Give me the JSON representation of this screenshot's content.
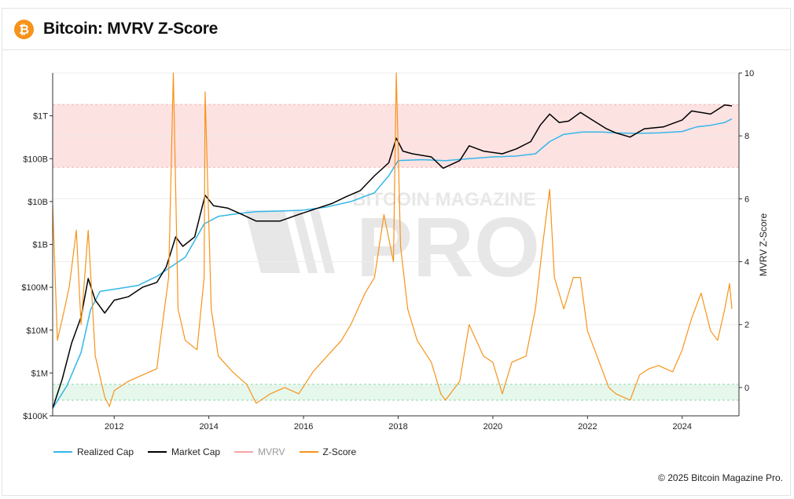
{
  "header": {
    "title": "Bitcoin: MVRV Z-Score",
    "logo_glyph": "₿"
  },
  "footer": {
    "copyright": "© 2025 Bitcoin Magazine Pro."
  },
  "watermark": {
    "top": "BITCOIN MAGAZINE",
    "big": "PRO"
  },
  "colors": {
    "realized_cap": "#35b7e8",
    "market_cap": "#000000",
    "mvrv": "#f4a6a6",
    "z_score": "#f7931a",
    "red_band": "#fde2e2",
    "green_band": "#e6f8ec"
  },
  "chart_data": {
    "type": "line",
    "title": "Bitcoin: MVRV Z-Score",
    "x_range": [
      2010.7,
      2025.2
    ],
    "x_ticks": [
      "2012",
      "2014",
      "2016",
      "2018",
      "2020",
      "2022",
      "2024"
    ],
    "x_tick_values": [
      2012,
      2014,
      2016,
      2018,
      2020,
      2022,
      2024
    ],
    "y_left": {
      "scale": "log",
      "range": [
        100000,
        10000000000000
      ],
      "ticks": [
        "$100K",
        "$1M",
        "$10M",
        "$100M",
        "$1B",
        "$10B",
        "$100B",
        "$1T"
      ],
      "tick_values": [
        100000,
        1000000,
        10000000,
        100000000,
        1000000000,
        10000000000,
        100000000000,
        1000000000000
      ]
    },
    "y_right": {
      "label": "MVRV Z-Score",
      "range": [
        -0.9,
        10
      ],
      "ticks": [
        "0",
        "2",
        "4",
        "6",
        "8",
        "10"
      ],
      "tick_values": [
        0,
        2,
        4,
        6,
        8,
        10
      ]
    },
    "bands": [
      {
        "name": "red",
        "z_from": 7,
        "z_to": 9
      },
      {
        "name": "green",
        "z_from": -0.4,
        "z_to": 0.1
      }
    ],
    "series": [
      {
        "name": "Realized Cap",
        "axis": "left",
        "x": [
          2010.7,
          2011.0,
          2011.3,
          2011.5,
          2011.7,
          2012.0,
          2012.5,
          2012.9,
          2013.2,
          2013.5,
          2013.9,
          2014.2,
          2014.6,
          2015.0,
          2015.5,
          2016.0,
          2016.5,
          2017.0,
          2017.5,
          2017.8,
          2018.0,
          2018.5,
          2019.0,
          2019.5,
          2020.0,
          2020.5,
          2020.9,
          2021.2,
          2021.5,
          2021.9,
          2022.3,
          2022.6,
          2023.0,
          2023.5,
          2024.0,
          2024.3,
          2024.6,
          2024.9,
          2025.05
        ],
        "y": [
          150000,
          500000,
          3000000,
          30000000,
          80000000,
          90000000,
          110000000,
          180000000,
          300000000,
          500000000,
          3000000000,
          4500000000,
          5200000000,
          5800000000,
          6000000000,
          6300000000,
          7500000000,
          10000000000,
          16000000000,
          40000000000,
          90000000000,
          95000000000,
          90000000000,
          100000000000,
          110000000000,
          115000000000,
          130000000000,
          250000000000,
          370000000000,
          420000000000,
          420000000000,
          400000000000,
          390000000000,
          400000000000,
          430000000000,
          550000000000,
          600000000000,
          700000000000,
          850000000000
        ]
      },
      {
        "name": "Market Cap",
        "axis": "left",
        "x": [
          2010.7,
          2010.9,
          2011.1,
          2011.3,
          2011.45,
          2011.6,
          2011.8,
          2012.0,
          2012.3,
          2012.6,
          2012.9,
          2013.1,
          2013.3,
          2013.45,
          2013.7,
          2013.92,
          2014.1,
          2014.4,
          2014.7,
          2015.0,
          2015.5,
          2015.9,
          2016.3,
          2016.6,
          2016.9,
          2017.2,
          2017.5,
          2017.8,
          2017.96,
          2018.1,
          2018.3,
          2018.7,
          2018.95,
          2019.3,
          2019.5,
          2019.8,
          2020.2,
          2020.5,
          2020.8,
          2021.0,
          2021.2,
          2021.4,
          2021.6,
          2021.85,
          2022.1,
          2022.4,
          2022.6,
          2022.9,
          2023.2,
          2023.6,
          2024.0,
          2024.2,
          2024.6,
          2024.9,
          2025.05
        ],
        "y": [
          150000,
          700000,
          5000000,
          20000000,
          160000000,
          50000000,
          25000000,
          50000000,
          60000000,
          100000000,
          130000000,
          300000000,
          1500000000,
          900000000,
          1500000000,
          14000000000,
          8000000000,
          7000000000,
          5000000000,
          3500000000,
          3500000000,
          5000000000,
          7000000000,
          9000000000,
          13000000000,
          18000000000,
          40000000000,
          80000000000,
          300000000000,
          150000000000,
          130000000000,
          110000000000,
          60000000000,
          90000000000,
          200000000000,
          150000000000,
          130000000000,
          170000000000,
          250000000000,
          600000000000,
          1100000000000,
          700000000000,
          750000000000,
          1200000000000,
          800000000000,
          500000000000,
          400000000000,
          320000000000,
          500000000000,
          550000000000,
          800000000000,
          1300000000000,
          1100000000000,
          1800000000000,
          1700000000000
        ]
      },
      {
        "name": "MVRV",
        "axis": "right",
        "x": [],
        "y": []
      },
      {
        "name": "Z-Score",
        "axis": "right",
        "x": [
          2010.7,
          2010.8,
          2010.95,
          2011.05,
          2011.2,
          2011.3,
          2011.45,
          2011.6,
          2011.8,
          2011.9,
          2012.0,
          2012.3,
          2012.6,
          2012.9,
          2013.0,
          2013.15,
          2013.25,
          2013.35,
          2013.5,
          2013.75,
          2013.9,
          2013.92,
          2014.05,
          2014.2,
          2014.5,
          2014.8,
          2015.0,
          2015.3,
          2015.6,
          2015.9,
          2016.2,
          2016.5,
          2016.8,
          2017.0,
          2017.3,
          2017.5,
          2017.7,
          2017.9,
          2017.96,
          2018.05,
          2018.2,
          2018.4,
          2018.7,
          2018.9,
          2019.0,
          2019.3,
          2019.5,
          2019.8,
          2020.0,
          2020.2,
          2020.4,
          2020.7,
          2020.9,
          2021.05,
          2021.2,
          2021.3,
          2021.5,
          2021.7,
          2021.85,
          2022.0,
          2022.2,
          2022.45,
          2022.6,
          2022.9,
          2023.1,
          2023.3,
          2023.5,
          2023.8,
          2024.0,
          2024.2,
          2024.4,
          2024.6,
          2024.75,
          2024.9,
          2025.0,
          2025.05
        ],
        "y": [
          5.8,
          1.5,
          2.5,
          3.2,
          5.0,
          2.0,
          5.0,
          1.0,
          -0.3,
          -0.6,
          -0.1,
          0.2,
          0.4,
          0.6,
          1.8,
          3.5,
          10.0,
          2.5,
          1.5,
          1.2,
          3.5,
          9.4,
          2.5,
          1.0,
          0.5,
          0.1,
          -0.5,
          -0.2,
          0.0,
          -0.2,
          0.5,
          1.0,
          1.5,
          2.0,
          3.0,
          3.5,
          5.5,
          4.0,
          10.0,
          4.5,
          2.5,
          1.5,
          0.8,
          -0.2,
          -0.4,
          0.2,
          2.0,
          1.0,
          0.8,
          -0.2,
          0.8,
          1.0,
          2.5,
          4.5,
          6.3,
          3.5,
          2.5,
          3.5,
          3.5,
          1.8,
          1.0,
          0.0,
          -0.2,
          -0.4,
          0.4,
          0.6,
          0.7,
          0.5,
          1.2,
          2.2,
          3.0,
          1.8,
          1.5,
          2.5,
          3.3,
          2.5
        ]
      }
    ],
    "legend": {
      "placement": "bottom-left",
      "entries": [
        "Realized Cap",
        "Market Cap",
        "MVRV",
        "Z-Score"
      ]
    }
  }
}
